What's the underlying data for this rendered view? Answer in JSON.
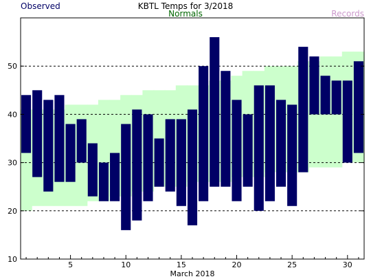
{
  "chart_data": {
    "type": "bar",
    "title": "KBTL Temps for 3/2018",
    "legend": [
      {
        "label": "Observed",
        "color": "#000066"
      },
      {
        "label": "Normals",
        "color": "#006600"
      },
      {
        "label": "Records",
        "color": "#cc99cc"
      }
    ],
    "xlabel": "March 2018",
    "ylabel": "",
    "xlim": [
      0.5,
      31.5
    ],
    "ylim": [
      10,
      60
    ],
    "x_ticks": [
      5,
      10,
      15,
      20,
      25,
      30
    ],
    "y_ticks": [
      10,
      20,
      30,
      40,
      50
    ],
    "dashed_gridlines_at": [
      20,
      30,
      40,
      50
    ],
    "colors": {
      "observed": "#000066",
      "normals": "#ccffcc",
      "frame": "#000000"
    },
    "days": [
      1,
      2,
      3,
      4,
      5,
      6,
      7,
      8,
      9,
      10,
      11,
      12,
      13,
      14,
      15,
      16,
      17,
      18,
      19,
      20,
      21,
      22,
      23,
      24,
      25,
      26,
      27,
      28,
      29,
      30,
      31
    ],
    "series": [
      {
        "name": "Observed",
        "high": [
          44,
          45,
          43,
          44,
          38,
          39,
          34,
          30,
          32,
          38,
          41,
          40,
          35,
          39,
          39,
          41,
          50,
          56,
          49,
          43,
          40,
          46,
          46,
          43,
          42,
          54,
          52,
          48,
          47,
          47,
          51
        ],
        "low": [
          32,
          27,
          24,
          26,
          26,
          30,
          23,
          22,
          22,
          16,
          18,
          22,
          25,
          24,
          21,
          17,
          22,
          25,
          25,
          22,
          25,
          20,
          22,
          25,
          21,
          28,
          40,
          40,
          40,
          30,
          32
        ]
      },
      {
        "name": "Normals",
        "high": [
          41,
          41,
          41,
          41,
          42,
          42,
          42,
          43,
          43,
          44,
          44,
          45,
          45,
          45,
          46,
          46,
          46,
          47,
          47,
          48,
          49,
          49,
          50,
          50,
          50,
          51,
          51,
          52,
          52,
          53,
          53
        ],
        "low": [
          20,
          21,
          21,
          21,
          21,
          21,
          22,
          22,
          23,
          23,
          24,
          24,
          25,
          25,
          25,
          26,
          26,
          26,
          26,
          27,
          27,
          27,
          28,
          28,
          28,
          28,
          29,
          29,
          29,
          30,
          30
        ]
      }
    ]
  }
}
